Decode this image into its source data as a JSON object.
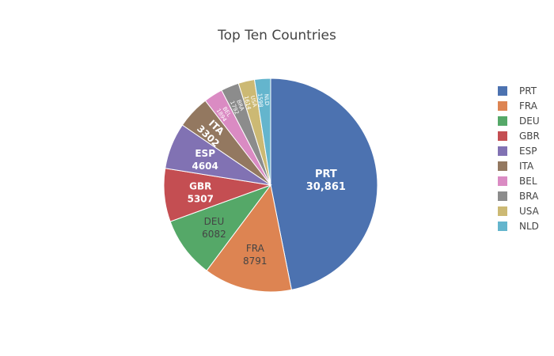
{
  "chart_data": {
    "type": "pie",
    "title": "Top Ten Countries",
    "legend_position": "right",
    "slices": [
      {
        "label": "PRT",
        "value": 30861,
        "display": "30,861",
        "color": "#4c72b0"
      },
      {
        "label": "FRA",
        "value": 8791,
        "display": "8791",
        "color": "#dd8452"
      },
      {
        "label": "DEU",
        "value": 6082,
        "display": "6082",
        "color": "#55a868"
      },
      {
        "label": "GBR",
        "value": 5307,
        "display": "5307",
        "color": "#c44e52"
      },
      {
        "label": "ESP",
        "value": 4604,
        "display": "4604",
        "color": "#8172b3"
      },
      {
        "label": "ITA",
        "value": 3302,
        "display": "3302",
        "color": "#937860"
      },
      {
        "label": "BEL",
        "value": 1894,
        "display": "1894",
        "color": "#da8bc3"
      },
      {
        "label": "BRA",
        "value": 1792,
        "display": "1792",
        "color": "#8c8c8c"
      },
      {
        "label": "USA",
        "value": 1614,
        "display": "1614",
        "color": "#ccb974"
      },
      {
        "label": "NLD",
        "value": 1598,
        "display": "1598",
        "color": "#64b5cd"
      }
    ]
  }
}
